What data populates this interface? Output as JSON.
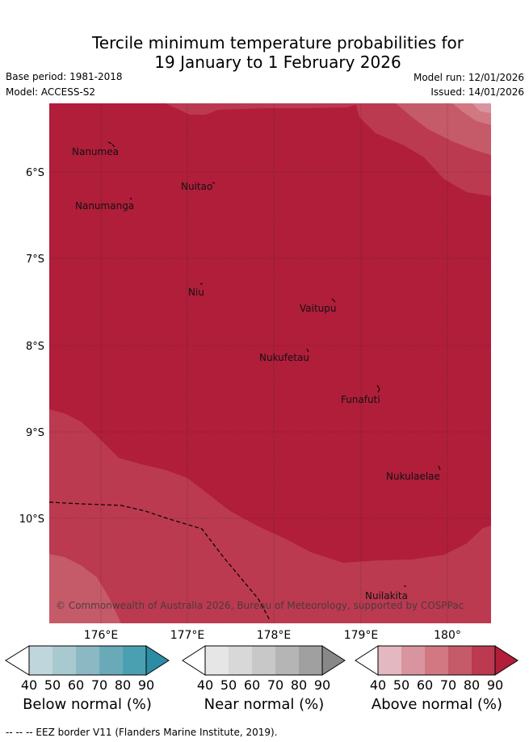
{
  "title": {
    "line1": "Tercile minimum temperature probabilities for",
    "line2": "19 January to 1 February 2026"
  },
  "meta": {
    "base_period": "Base period: 1981-2018",
    "model": "Model: ACCESS-S2",
    "model_run": "Model run: 12/01/2026",
    "issued": "Issued: 14/01/2026"
  },
  "axes": {
    "lat_labels": [
      "6°S",
      "7°S",
      "8°S",
      "9°S",
      "10°S"
    ],
    "lon_labels": [
      "176°E",
      "177°E",
      "178°E",
      "179°E",
      "180°"
    ]
  },
  "places": [
    {
      "name": "Nanumea"
    },
    {
      "name": "Nuitao"
    },
    {
      "name": "Nanumanga"
    },
    {
      "name": "Niu"
    },
    {
      "name": "Vaitupu"
    },
    {
      "name": "Nukufetau"
    },
    {
      "name": "Funafuti"
    },
    {
      "name": "Nukulaelae"
    },
    {
      "name": "Nuilakita"
    }
  ],
  "copyright": "© Commonwealth of Australia 2026, Bureau of Meteorology, supported by COSPPac",
  "colorbars": [
    {
      "label": "Below normal (%)",
      "ticks": [
        "40",
        "50",
        "60",
        "70",
        "80",
        "90"
      ],
      "colors": [
        "#ffffff",
        "#bfd6dc",
        "#a8c9cf",
        "#8bb8c3",
        "#6aaab8",
        "#4aa0b0",
        "#2b8da3"
      ]
    },
    {
      "label": "Near normal (%)",
      "ticks": [
        "40",
        "50",
        "60",
        "70",
        "80",
        "90"
      ],
      "colors": [
        "#ffffff",
        "#e6e6e6",
        "#d8d8d8",
        "#c8c8c8",
        "#b5b5b5",
        "#a0a0a0",
        "#888888"
      ]
    },
    {
      "label": "Above normal (%)",
      "ticks": [
        "40",
        "50",
        "60",
        "70",
        "80",
        "90"
      ],
      "colors": [
        "#ffffff",
        "#e3b8c0",
        "#d9959f",
        "#d17882",
        "#c55a69",
        "#bb3a50",
        "#b01e3a"
      ]
    }
  ],
  "footer": "-- -- -- EEZ border V11 (Flanders Marine Institute, 2019)."
}
